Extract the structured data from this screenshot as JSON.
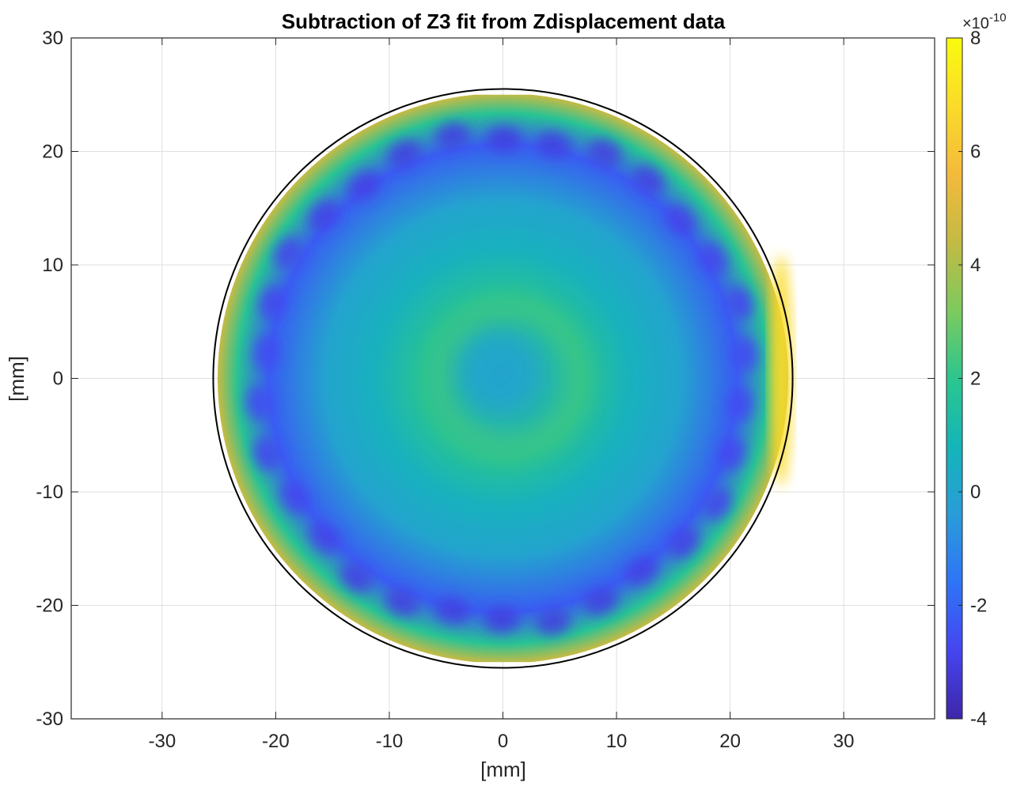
{
  "chart_data": {
    "type": "heatmap",
    "title": "Subtraction of Z3 fit from Zdisplacement data",
    "xlabel": "[mm]",
    "ylabel": "[mm]",
    "xlim": [
      -38,
      38
    ],
    "ylim": [
      -30,
      30
    ],
    "x_ticks": [
      "-30",
      "-20",
      "-10",
      "0",
      "10",
      "20",
      "30"
    ],
    "y_ticks": [
      "30",
      "20",
      "10",
      "0",
      "-10",
      "-20",
      "-30"
    ],
    "x_tick_values": [
      -30,
      -20,
      -10,
      0,
      10,
      20,
      30
    ],
    "y_tick_values": [
      30,
      20,
      10,
      0,
      -10,
      -20,
      -30
    ],
    "grid": true,
    "aperture": {
      "center": [
        0,
        0
      ],
      "radius_mm": 25.5
    },
    "data_extent_mm": {
      "y_min": -25,
      "y_max": 25
    },
    "colorbar": {
      "min": -4,
      "max": 8,
      "ticks": [
        "8",
        "6",
        "4",
        "2",
        "0",
        "-2",
        "-4"
      ],
      "tick_values": [
        8,
        6,
        4,
        2,
        0,
        -2,
        -4
      ],
      "exponent": "×10",
      "exponent_power": "-10",
      "colormap": [
        "#3e26a8",
        "#4545f0",
        "#2f74f6",
        "#2a9cd9",
        "#14b5b8",
        "#2cc68e",
        "#7dca5e",
        "#c3ba44",
        "#f4ba3c",
        "#fadb2a",
        "#f9fb0e"
      ]
    },
    "surface_features": {
      "center_value": 0.0,
      "mid_ring_value": 1.8,
      "inner_value": 0.6,
      "dark_ring_value": -2.6,
      "edge_value": 4.5,
      "right_edge_value": 6.8
    },
    "colors": {
      "axis": "#262626",
      "grid": "#dfdfdf",
      "circle": "#000000"
    }
  }
}
